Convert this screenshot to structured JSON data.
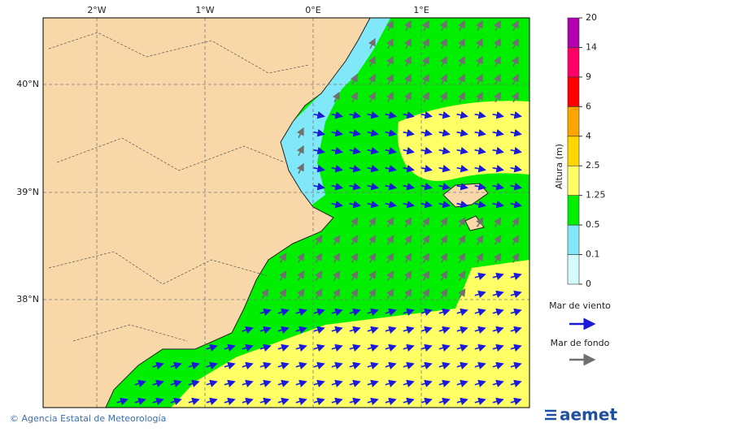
{
  "map": {
    "lon_labels": [
      "2°W",
      "1°W",
      "0°E",
      "1°E"
    ],
    "lat_labels": [
      "40°N",
      "39°N",
      "38°N"
    ]
  },
  "legend": {
    "title": "Altura (m)",
    "levels": [
      0,
      0.1,
      0.5,
      1.25,
      2.5,
      4,
      6,
      9,
      14,
      20
    ],
    "colors": [
      "#d4fcfc",
      "#80e8f8",
      "#00ee00",
      "#ffff66",
      "#ffd700",
      "#ffa500",
      "#ff0000",
      "#ff0066",
      "#b000b0"
    ],
    "wind_sea": "Mar de viento",
    "swell": "Mar de fondo"
  },
  "footer": {
    "credit": "© Agencia Estatal de Meteorología",
    "logo": "aemet"
  }
}
